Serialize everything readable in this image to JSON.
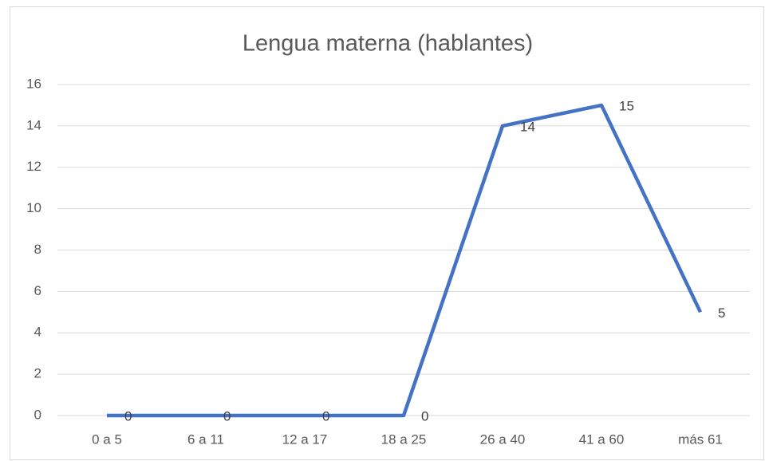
{
  "chart_data": {
    "type": "line",
    "title": "Lengua materna (hablantes)",
    "categories": [
      "0 a 5",
      "6 a 11",
      "12 a 17",
      "18 a 25",
      "26 a 40",
      "41 a 60",
      "más 61"
    ],
    "values": [
      0,
      0,
      0,
      0,
      14,
      15,
      5
    ],
    "color": "#4472c4",
    "ylim": [
      0,
      16
    ],
    "yticks": [
      0,
      2,
      4,
      6,
      8,
      10,
      12,
      14,
      16
    ],
    "grid": true
  }
}
